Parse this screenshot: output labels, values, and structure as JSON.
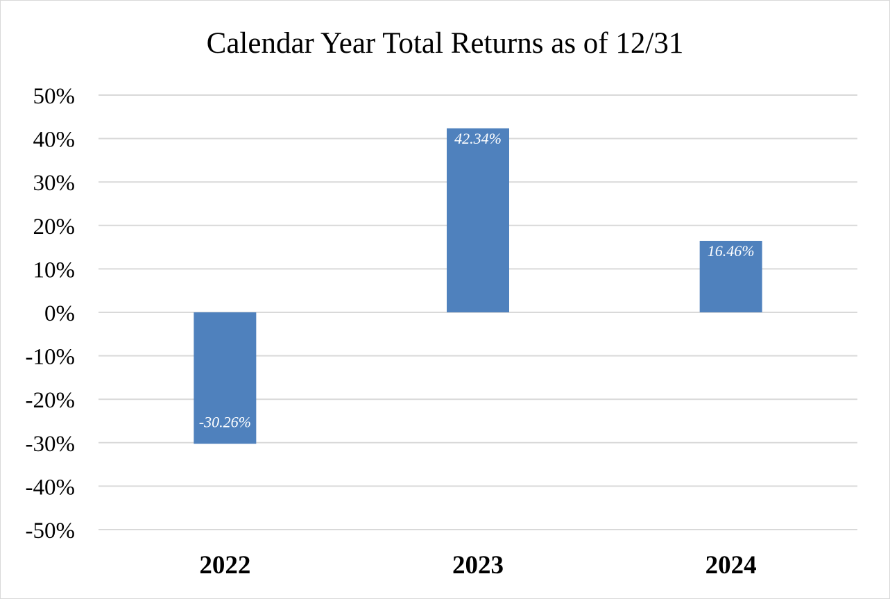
{
  "chart_data": {
    "type": "bar",
    "title": "Calendar Year Total Returns as of 12/31",
    "xlabel": "",
    "ylabel": "",
    "categories": [
      "2022",
      "2023",
      "2024"
    ],
    "values": [
      -30.26,
      42.34,
      16.46
    ],
    "data_labels": [
      "-30.26%",
      "42.34%",
      "16.46%"
    ],
    "ylim": [
      -50,
      50
    ],
    "yticks": [
      50,
      40,
      30,
      20,
      10,
      0,
      -10,
      -20,
      -30,
      -40,
      -50
    ],
    "ytick_labels": [
      "50%",
      "40%",
      "30%",
      "20%",
      "10%",
      "0%",
      "-10%",
      "-20%",
      "-30%",
      "-40%",
      "-50%"
    ],
    "grid": true,
    "legend": "none",
    "colors": {
      "bar": "#4f81bd",
      "grid": "#d9d9d9",
      "border": "#d9d9d9",
      "label_text": "#ffffff"
    }
  }
}
